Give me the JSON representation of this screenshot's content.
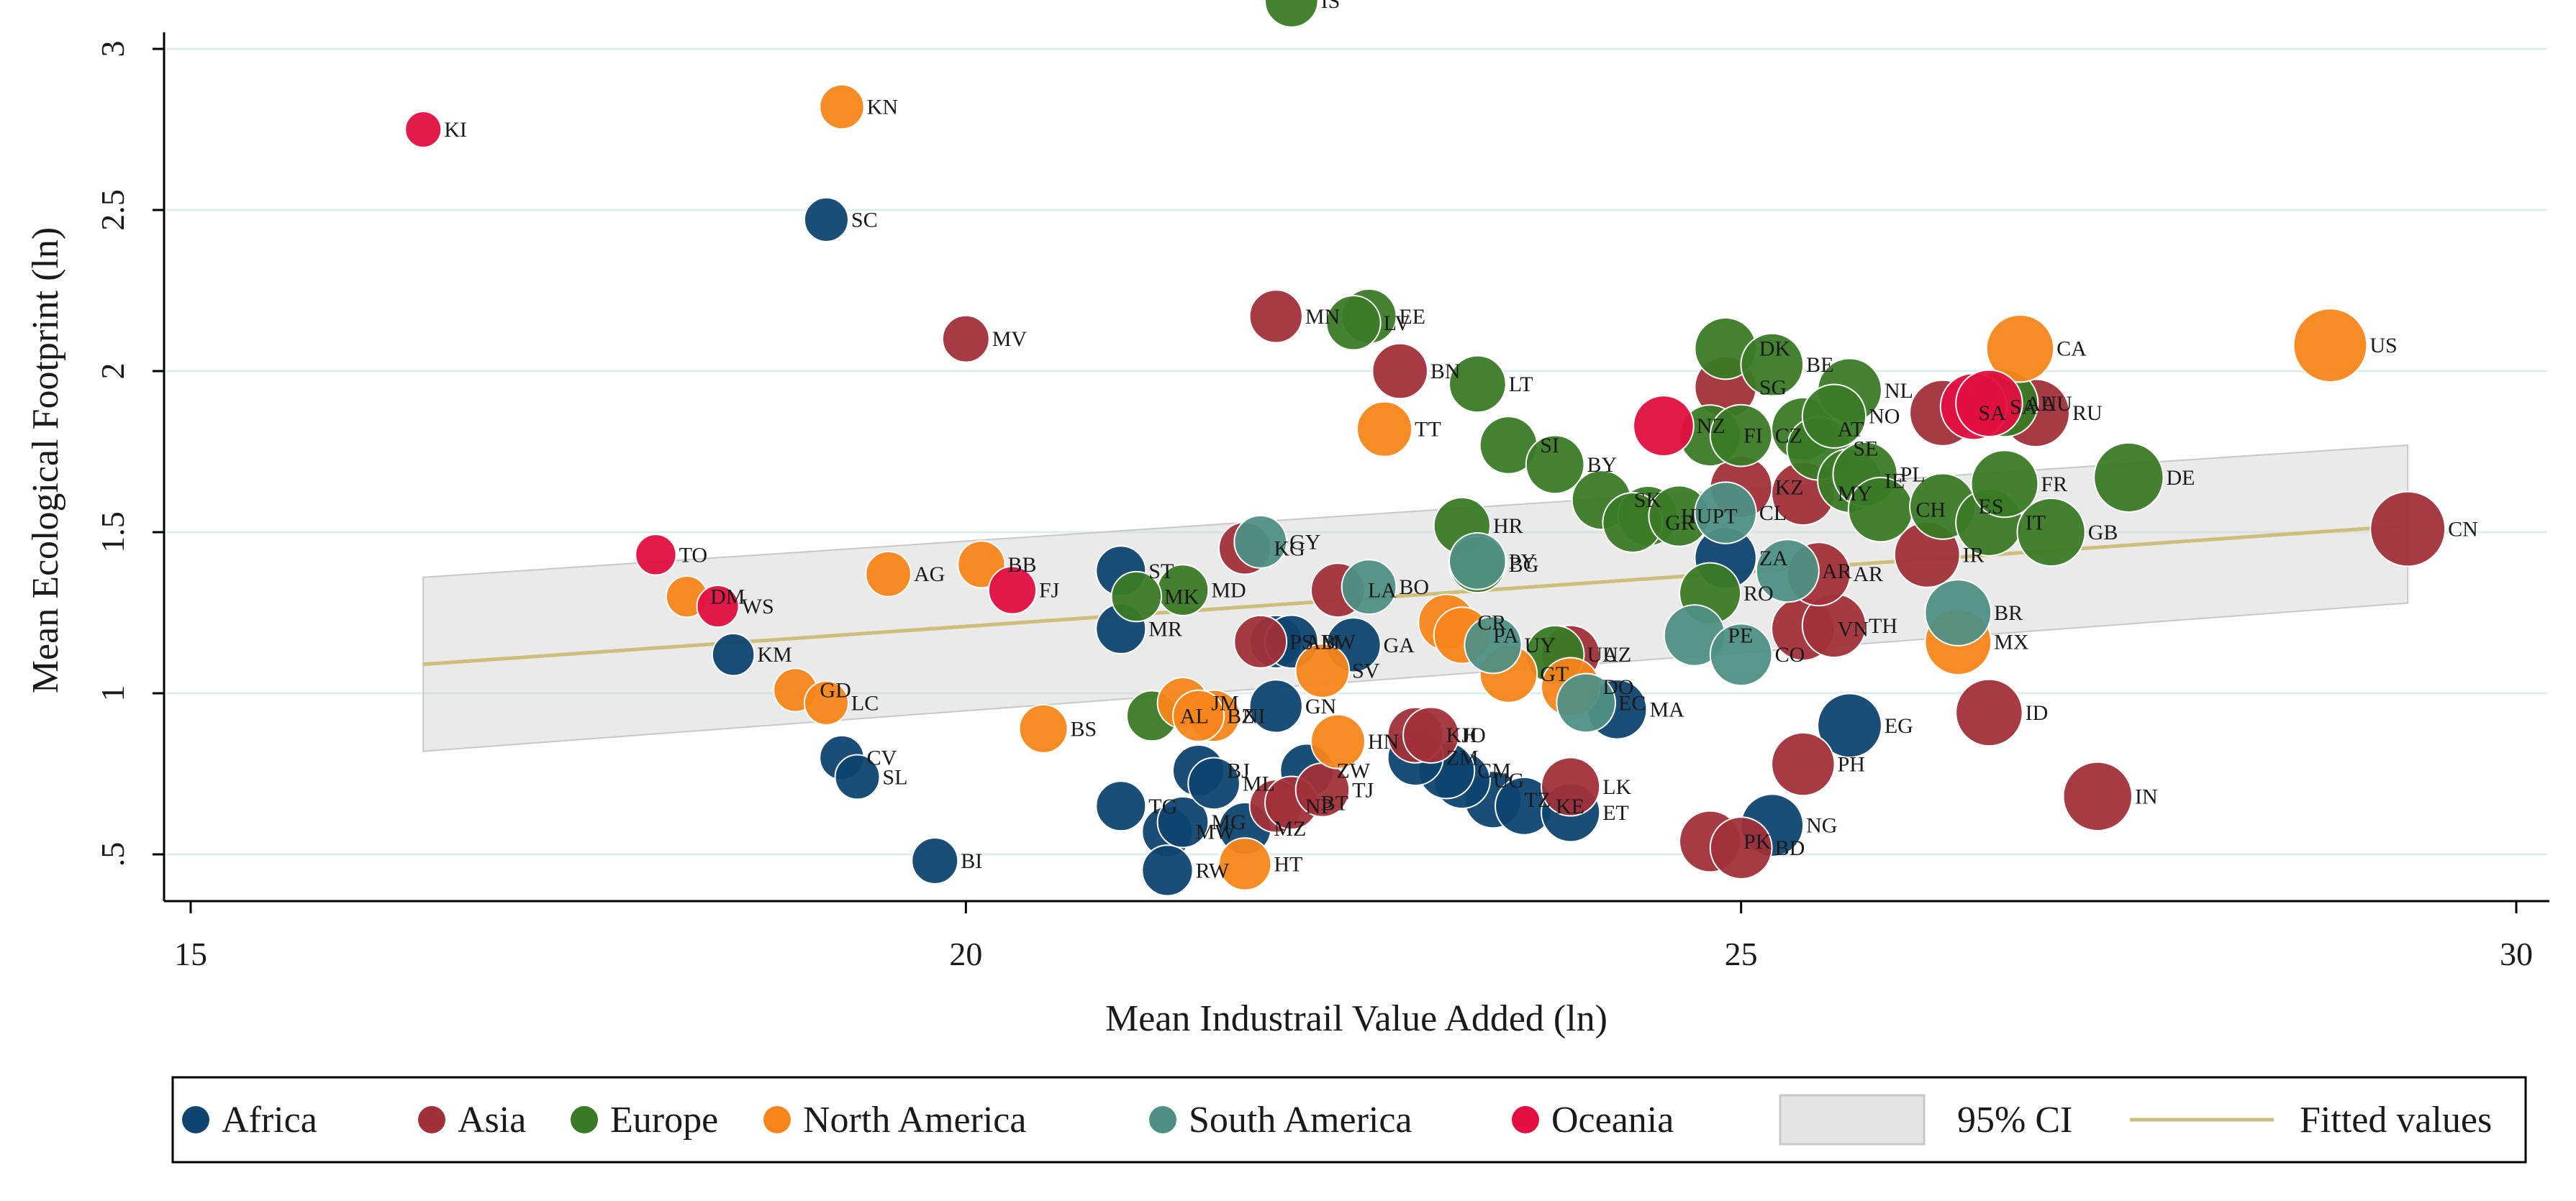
{
  "chart_data": {
    "type": "scatter",
    "title": "",
    "xlabel": "Mean Industrail Value Added (ln)",
    "ylabel": "Mean Ecological Footprint (ln)",
    "xlim": [
      15,
      30.3
    ],
    "ylim": [
      0.4,
      3.3
    ],
    "xticks": [
      15,
      20,
      25,
      30
    ],
    "yticks": [
      0.5,
      1,
      1.5,
      2,
      2.5,
      3
    ],
    "ytick_labels": [
      ".5",
      "1",
      "1.5",
      "2",
      "2.5",
      "3"
    ],
    "grid": "horizontal",
    "legend_position": "bottom",
    "colors": {
      "Africa": "#0e4570",
      "Asia": "#a1303a",
      "Europe": "#3a7a26",
      "North America": "#f7851a",
      "South America": "#4f8f84",
      "Oceania": "#e20f40",
      "fit": "#cdbf7a",
      "ci": "#c8c8c8"
    },
    "series": [
      {
        "name": "Africa",
        "points": [
          [
            "SC",
            19.1,
            2.47
          ],
          [
            "CV",
            19.2,
            0.8
          ],
          [
            "SL",
            19.3,
            0.74
          ],
          [
            "BI",
            19.8,
            0.48
          ],
          [
            "KM",
            18.5,
            1.12
          ],
          [
            "ST",
            21.0,
            1.38
          ],
          [
            "TG",
            21.0,
            0.65
          ],
          [
            "MW",
            21.3,
            0.57
          ],
          [
            "RW",
            21.3,
            0.45
          ],
          [
            "MG",
            21.4,
            0.6
          ],
          [
            "BJ",
            21.5,
            0.76
          ],
          [
            "ML",
            21.6,
            0.72
          ],
          [
            "MZ",
            21.8,
            0.58
          ],
          [
            "MR",
            21.0,
            1.2
          ],
          [
            "GN",
            22.0,
            0.96
          ],
          [
            "AM",
            22.0,
            1.16
          ],
          [
            "BW",
            22.1,
            1.16
          ],
          [
            "GA",
            22.5,
            1.15
          ],
          [
            "ZW",
            22.2,
            0.76
          ],
          [
            "TZ",
            23.4,
            0.67
          ],
          [
            "KE",
            23.6,
            0.65
          ],
          [
            "ET",
            23.9,
            0.63
          ],
          [
            "UG",
            23.2,
            0.73
          ],
          [
            "CM",
            23.1,
            0.76
          ],
          [
            "ZM",
            22.9,
            0.8
          ],
          [
            "MA",
            24.2,
            0.95
          ],
          [
            "ZA",
            24.9,
            1.42
          ],
          [
            "EG",
            25.7,
            0.9
          ],
          [
            "NG",
            25.2,
            0.59
          ]
        ]
      },
      {
        "name": "Asia",
        "points": [
          [
            "MV",
            20.0,
            2.1
          ],
          [
            "MN",
            22.0,
            2.17
          ],
          [
            "BN",
            22.8,
            2.0
          ],
          [
            "KG",
            21.8,
            1.45
          ],
          [
            "LA",
            22.4,
            1.32
          ],
          [
            "PS",
            21.9,
            1.16
          ],
          [
            "KH",
            22.9,
            0.87
          ],
          [
            "JO",
            23.0,
            0.87
          ],
          [
            "NP",
            22.0,
            0.65
          ],
          [
            "BT",
            22.1,
            0.66
          ],
          [
            "TJ",
            22.3,
            0.7
          ],
          [
            "LK",
            23.9,
            0.71
          ],
          [
            "UZ",
            23.9,
            1.12
          ],
          [
            "KZ",
            25.0,
            1.64
          ],
          [
            "MY",
            25.4,
            1.62
          ],
          [
            "VN",
            25.4,
            1.2
          ],
          [
            "TH",
            25.6,
            1.21
          ],
          [
            "AR",
            25.5,
            1.37
          ],
          [
            "IR",
            26.2,
            1.43
          ],
          [
            "SA",
            26.3,
            1.87
          ],
          [
            "RU",
            26.9,
            1.87
          ],
          [
            "ID",
            26.6,
            0.94
          ],
          [
            "PK",
            24.8,
            0.54
          ],
          [
            "BD",
            25.0,
            0.52
          ],
          [
            "PH",
            25.4,
            0.78
          ],
          [
            "IN",
            27.3,
            0.68
          ],
          [
            "CN",
            29.3,
            1.51
          ],
          [
            "SG",
            24.9,
            1.95
          ]
        ]
      },
      {
        "name": "Europe",
        "points": [
          [
            "IS",
            22.1,
            3.15
          ],
          [
            "EE",
            22.6,
            2.17
          ],
          [
            "LV",
            22.5,
            2.15
          ],
          [
            "LT",
            23.3,
            1.96
          ],
          [
            "SI",
            23.5,
            1.77
          ],
          [
            "BY",
            23.8,
            1.71
          ],
          [
            "SK",
            24.1,
            1.6
          ],
          [
            "HU",
            24.4,
            1.55
          ],
          [
            "HR",
            23.2,
            1.52
          ],
          [
            "BG",
            23.3,
            1.4
          ],
          [
            "GR",
            24.3,
            1.53
          ],
          [
            "PT",
            24.6,
            1.55
          ],
          [
            "MD",
            21.4,
            1.32
          ],
          [
            "AL",
            21.2,
            0.93
          ],
          [
            "MK",
            21.1,
            1.3
          ],
          [
            "DK",
            24.9,
            2.07
          ],
          [
            "BE",
            25.2,
            2.02
          ],
          [
            "FI",
            24.8,
            1.8
          ],
          [
            "CZ",
            25.0,
            1.8
          ],
          [
            "AT",
            25.4,
            1.82
          ],
          [
            "SE",
            25.5,
            1.76
          ],
          [
            "NL",
            25.7,
            1.94
          ],
          [
            "NO",
            25.6,
            1.86
          ],
          [
            "IE",
            25.7,
            1.66
          ],
          [
            "PL",
            25.8,
            1.68
          ],
          [
            "CH",
            25.9,
            1.57
          ],
          [
            "ES",
            26.3,
            1.58
          ],
          [
            "IT",
            26.6,
            1.53
          ],
          [
            "FR",
            26.7,
            1.65
          ],
          [
            "GB",
            27.0,
            1.5
          ],
          [
            "DE",
            27.5,
            1.67
          ],
          [
            "AU",
            26.7,
            1.9
          ],
          [
            "RO",
            24.8,
            1.31
          ],
          [
            "UA",
            23.8,
            1.12
          ]
        ]
      },
      {
        "name": "North America",
        "points": [
          [
            "KN",
            19.2,
            2.82
          ],
          [
            "AG",
            19.5,
            1.37
          ],
          [
            "DM",
            18.2,
            1.3
          ],
          [
            "GD",
            18.9,
            1.01
          ],
          [
            "LC",
            19.1,
            0.97
          ],
          [
            "BB",
            20.1,
            1.4
          ],
          [
            "BS",
            20.5,
            0.89
          ],
          [
            "JM",
            21.4,
            0.97
          ],
          [
            "NI",
            21.6,
            0.93
          ],
          [
            "SV",
            22.3,
            1.07
          ],
          [
            "HN",
            22.4,
            0.85
          ],
          [
            "TT",
            22.7,
            1.82
          ],
          [
            "CR",
            23.1,
            1.22
          ],
          [
            "PA",
            23.2,
            1.18
          ],
          [
            "GT",
            23.5,
            1.06
          ],
          [
            "DO",
            23.9,
            1.02
          ],
          [
            "CA",
            26.8,
            2.07
          ],
          [
            "MX",
            26.4,
            1.16
          ],
          [
            "US",
            28.8,
            2.08
          ],
          [
            "HT",
            21.8,
            0.47
          ],
          [
            "BZ",
            21.5,
            0.93
          ]
        ]
      },
      {
        "name": "South America",
        "points": [
          [
            "GY",
            21.9,
            1.47
          ],
          [
            "BO",
            22.6,
            1.33
          ],
          [
            "PY",
            23.3,
            1.41
          ],
          [
            "UY",
            23.4,
            1.15
          ],
          [
            "EC",
            24.0,
            0.97
          ],
          [
            "PE",
            24.7,
            1.18
          ],
          [
            "CO",
            25.0,
            1.12
          ],
          [
            "CL",
            24.9,
            1.56
          ],
          [
            "AR",
            25.3,
            1.38
          ],
          [
            "BR",
            26.4,
            1.25
          ]
        ]
      },
      {
        "name": "Oceania",
        "points": [
          [
            "KI",
            16.5,
            2.75
          ],
          [
            "TO",
            18.0,
            1.43
          ],
          [
            "WS",
            18.4,
            1.27
          ],
          [
            "FJ",
            20.3,
            1.32
          ],
          [
            "NZ",
            24.5,
            1.83
          ],
          [
            "SA",
            26.5,
            1.89
          ],
          [
            "AU",
            26.6,
            1.9
          ]
        ]
      }
    ],
    "fitted_line": {
      "x": [
        16.5,
        29.3
      ],
      "y": [
        1.09,
        1.52
      ]
    },
    "ci_band": {
      "x": [
        16.5,
        29.3
      ],
      "upper": [
        1.36,
        1.77
      ],
      "lower": [
        0.82,
        1.28
      ]
    },
    "legend": [
      {
        "name": "Africa",
        "kind": "marker"
      },
      {
        "name": "Asia",
        "kind": "marker"
      },
      {
        "name": "Europe",
        "kind": "marker"
      },
      {
        "name": "North America",
        "kind": "marker"
      },
      {
        "name": "South America",
        "kind": "marker"
      },
      {
        "name": "Oceania",
        "kind": "marker"
      },
      {
        "name": "95% CI",
        "kind": "band"
      },
      {
        "name": "Fitted values",
        "kind": "line"
      }
    ]
  }
}
